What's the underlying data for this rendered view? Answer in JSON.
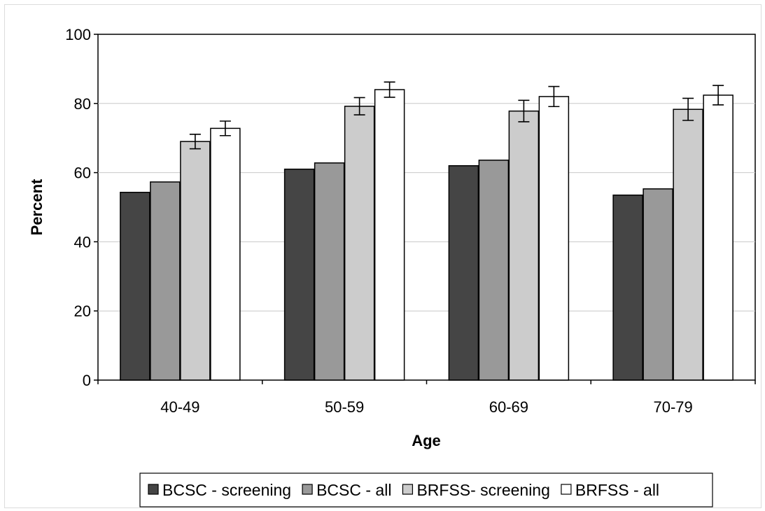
{
  "chart_data": {
    "type": "bar",
    "title": "",
    "xlabel": "Age",
    "ylabel": "Percent",
    "ylim": [
      0,
      100
    ],
    "yticks": [
      0,
      20,
      40,
      60,
      80,
      100
    ],
    "grid": true,
    "legend_position": "bottom",
    "categories": [
      "40-49",
      "50-59",
      "60-69",
      "70-79"
    ],
    "series": [
      {
        "name": "BCSC - screening",
        "color": "#454545",
        "values": [
          54.3,
          61.0,
          62.0,
          53.5
        ]
      },
      {
        "name": "BCSC - all",
        "color": "#999999",
        "values": [
          57.3,
          62.8,
          63.6,
          55.3
        ]
      },
      {
        "name": "BRFSS- screening",
        "color": "#cccccc",
        "values": [
          69.0,
          79.2,
          77.8,
          78.3
        ],
        "error": [
          [
            66.9,
            71.1
          ],
          [
            76.7,
            81.7
          ],
          [
            74.7,
            80.9
          ],
          [
            75.1,
            81.5
          ]
        ]
      },
      {
        "name": "BRFSS - all",
        "color": "#ffffff",
        "values": [
          72.8,
          84.0,
          82.0,
          82.4
        ],
        "error": [
          [
            70.7,
            74.9
          ],
          [
            81.8,
            86.2
          ],
          [
            79.1,
            84.9
          ],
          [
            79.6,
            85.2
          ]
        ]
      }
    ]
  }
}
